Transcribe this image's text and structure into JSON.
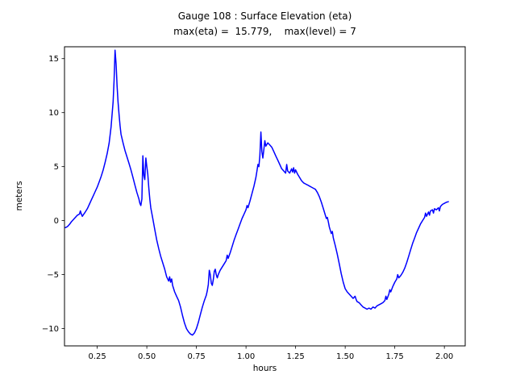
{
  "figure": {
    "title": "Gauge 108 : Surface Elevation (eta)",
    "subtitle": "max(eta) =  15.779,    max(level) = 7",
    "xlabel": "hours",
    "ylabel": "meters"
  },
  "chart_data": {
    "type": "line",
    "title": "Gauge 108 : Surface Elevation (eta)",
    "subtitle": "max(eta) =  15.779,    max(level) = 7",
    "xlabel": "hours",
    "ylabel": "meters",
    "max_eta": 15.779,
    "max_level": 7,
    "line_color": "#0000ff",
    "grid": false,
    "legend_position": "none",
    "xlim": [
      0.085,
      2.105
    ],
    "ylim": [
      -11.6,
      16.1
    ],
    "xticks": [
      0.25,
      0.5,
      0.75,
      1.0,
      1.25,
      1.5,
      1.75,
      2.0
    ],
    "xtick_labels": [
      "0.25",
      "0.50",
      "0.75",
      "1.00",
      "1.25",
      "1.50",
      "1.75",
      "2.00"
    ],
    "yticks": [
      -10,
      -5,
      0,
      5,
      10,
      15
    ],
    "ytick_labels": [
      "−10",
      "−5",
      "0",
      "5",
      "10",
      "15"
    ],
    "series": [
      {
        "name": "eta",
        "points": [
          [
            0.09,
            -0.65
          ],
          [
            0.1,
            -0.55
          ],
          [
            0.11,
            -0.35
          ],
          [
            0.12,
            -0.1
          ],
          [
            0.13,
            0.1
          ],
          [
            0.14,
            0.3
          ],
          [
            0.15,
            0.5
          ],
          [
            0.16,
            0.6
          ],
          [
            0.165,
            0.9
          ],
          [
            0.17,
            0.6
          ],
          [
            0.175,
            0.4
          ],
          [
            0.18,
            0.55
          ],
          [
            0.19,
            0.8
          ],
          [
            0.2,
            1.1
          ],
          [
            0.21,
            1.5
          ],
          [
            0.22,
            1.9
          ],
          [
            0.23,
            2.3
          ],
          [
            0.24,
            2.7
          ],
          [
            0.25,
            3.1
          ],
          [
            0.26,
            3.6
          ],
          [
            0.27,
            4.1
          ],
          [
            0.28,
            4.7
          ],
          [
            0.29,
            5.4
          ],
          [
            0.3,
            6.2
          ],
          [
            0.31,
            7.2
          ],
          [
            0.32,
            8.7
          ],
          [
            0.33,
            11.0
          ],
          [
            0.335,
            13.0
          ],
          [
            0.34,
            15.78
          ],
          [
            0.345,
            14.5
          ],
          [
            0.35,
            12.5
          ],
          [
            0.355,
            11.0
          ],
          [
            0.36,
            9.8
          ],
          [
            0.365,
            8.8
          ],
          [
            0.37,
            8.0
          ],
          [
            0.38,
            7.2
          ],
          [
            0.39,
            6.5
          ],
          [
            0.4,
            5.9
          ],
          [
            0.41,
            5.3
          ],
          [
            0.42,
            4.7
          ],
          [
            0.43,
            4.0
          ],
          [
            0.44,
            3.3
          ],
          [
            0.45,
            2.6
          ],
          [
            0.46,
            2.0
          ],
          [
            0.465,
            1.6
          ],
          [
            0.47,
            1.4
          ],
          [
            0.475,
            2.0
          ],
          [
            0.48,
            6.0
          ],
          [
            0.485,
            4.2
          ],
          [
            0.49,
            3.8
          ],
          [
            0.495,
            5.8
          ],
          [
            0.5,
            5.0
          ],
          [
            0.505,
            4.3
          ],
          [
            0.51,
            3.0
          ],
          [
            0.515,
            2.0
          ],
          [
            0.52,
            1.2
          ],
          [
            0.53,
            0.2
          ],
          [
            0.54,
            -0.8
          ],
          [
            0.55,
            -1.8
          ],
          [
            0.56,
            -2.6
          ],
          [
            0.57,
            -3.3
          ],
          [
            0.58,
            -3.9
          ],
          [
            0.59,
            -4.5
          ],
          [
            0.6,
            -5.2
          ],
          [
            0.61,
            -5.6
          ],
          [
            0.615,
            -5.2
          ],
          [
            0.62,
            -5.7
          ],
          [
            0.625,
            -5.4
          ],
          [
            0.63,
            -6.0
          ],
          [
            0.64,
            -6.6
          ],
          [
            0.65,
            -7.0
          ],
          [
            0.66,
            -7.4
          ],
          [
            0.67,
            -8.0
          ],
          [
            0.68,
            -8.8
          ],
          [
            0.69,
            -9.5
          ],
          [
            0.7,
            -10.0
          ],
          [
            0.71,
            -10.3
          ],
          [
            0.72,
            -10.5
          ],
          [
            0.73,
            -10.6
          ],
          [
            0.74,
            -10.4
          ],
          [
            0.75,
            -10.0
          ],
          [
            0.76,
            -9.4
          ],
          [
            0.77,
            -8.7
          ],
          [
            0.78,
            -8.0
          ],
          [
            0.79,
            -7.4
          ],
          [
            0.8,
            -6.9
          ],
          [
            0.805,
            -6.5
          ],
          [
            0.81,
            -5.9
          ],
          [
            0.815,
            -4.6
          ],
          [
            0.82,
            -5.0
          ],
          [
            0.825,
            -5.8
          ],
          [
            0.83,
            -6.0
          ],
          [
            0.835,
            -5.5
          ],
          [
            0.84,
            -4.7
          ],
          [
            0.845,
            -4.5
          ],
          [
            0.85,
            -5.0
          ],
          [
            0.855,
            -5.3
          ],
          [
            0.86,
            -5.0
          ],
          [
            0.87,
            -4.6
          ],
          [
            0.88,
            -4.3
          ],
          [
            0.89,
            -4.0
          ],
          [
            0.9,
            -3.7
          ],
          [
            0.905,
            -3.2
          ],
          [
            0.91,
            -3.5
          ],
          [
            0.92,
            -3.0
          ],
          [
            0.93,
            -2.4
          ],
          [
            0.94,
            -1.8
          ],
          [
            0.95,
            -1.3
          ],
          [
            0.96,
            -0.8
          ],
          [
            0.97,
            -0.3
          ],
          [
            0.98,
            0.2
          ],
          [
            0.99,
            0.6
          ],
          [
            1.0,
            1.0
          ],
          [
            1.005,
            1.4
          ],
          [
            1.01,
            1.2
          ],
          [
            1.02,
            1.8
          ],
          [
            1.03,
            2.5
          ],
          [
            1.04,
            3.2
          ],
          [
            1.05,
            4.0
          ],
          [
            1.055,
            4.6
          ],
          [
            1.06,
            5.2
          ],
          [
            1.065,
            5.0
          ],
          [
            1.07,
            6.0
          ],
          [
            1.075,
            8.2
          ],
          [
            1.08,
            6.4
          ],
          [
            1.085,
            5.8
          ],
          [
            1.09,
            6.6
          ],
          [
            1.095,
            7.4
          ],
          [
            1.1,
            6.9
          ],
          [
            1.11,
            7.2
          ],
          [
            1.12,
            7.0
          ],
          [
            1.13,
            6.8
          ],
          [
            1.14,
            6.4
          ],
          [
            1.15,
            6.0
          ],
          [
            1.16,
            5.6
          ],
          [
            1.17,
            5.2
          ],
          [
            1.18,
            4.8
          ],
          [
            1.19,
            4.6
          ],
          [
            1.2,
            4.4
          ],
          [
            1.205,
            5.2
          ],
          [
            1.21,
            4.6
          ],
          [
            1.22,
            4.4
          ],
          [
            1.23,
            4.8
          ],
          [
            1.235,
            4.5
          ],
          [
            1.24,
            4.9
          ],
          [
            1.245,
            4.4
          ],
          [
            1.25,
            4.7
          ],
          [
            1.26,
            4.3
          ],
          [
            1.27,
            4.0
          ],
          [
            1.28,
            3.7
          ],
          [
            1.29,
            3.5
          ],
          [
            1.3,
            3.4
          ],
          [
            1.31,
            3.3
          ],
          [
            1.32,
            3.2
          ],
          [
            1.33,
            3.1
          ],
          [
            1.34,
            3.0
          ],
          [
            1.35,
            2.9
          ],
          [
            1.36,
            2.6
          ],
          [
            1.37,
            2.2
          ],
          [
            1.38,
            1.7
          ],
          [
            1.39,
            1.1
          ],
          [
            1.4,
            0.5
          ],
          [
            1.405,
            0.2
          ],
          [
            1.41,
            0.3
          ],
          [
            1.415,
            -0.1
          ],
          [
            1.42,
            -0.6
          ],
          [
            1.43,
            -1.2
          ],
          [
            1.435,
            -1.0
          ],
          [
            1.44,
            -1.6
          ],
          [
            1.45,
            -2.3
          ],
          [
            1.46,
            -3.1
          ],
          [
            1.47,
            -4.0
          ],
          [
            1.48,
            -4.9
          ],
          [
            1.49,
            -5.7
          ],
          [
            1.5,
            -6.3
          ],
          [
            1.51,
            -6.6
          ],
          [
            1.52,
            -6.8
          ],
          [
            1.53,
            -7.0
          ],
          [
            1.54,
            -7.2
          ],
          [
            1.55,
            -7.0
          ],
          [
            1.555,
            -7.3
          ],
          [
            1.56,
            -7.5
          ],
          [
            1.57,
            -7.6
          ],
          [
            1.58,
            -7.8
          ],
          [
            1.59,
            -8.0
          ],
          [
            1.6,
            -8.1
          ],
          [
            1.61,
            -8.2
          ],
          [
            1.62,
            -8.1
          ],
          [
            1.63,
            -8.2
          ],
          [
            1.64,
            -8.0
          ],
          [
            1.65,
            -8.1
          ],
          [
            1.66,
            -7.9
          ],
          [
            1.67,
            -7.8
          ],
          [
            1.68,
            -7.7
          ],
          [
            1.69,
            -7.6
          ],
          [
            1.7,
            -7.4
          ],
          [
            1.705,
            -7.0
          ],
          [
            1.71,
            -7.3
          ],
          [
            1.72,
            -6.8
          ],
          [
            1.725,
            -6.4
          ],
          [
            1.73,
            -6.6
          ],
          [
            1.74,
            -6.1
          ],
          [
            1.75,
            -5.7
          ],
          [
            1.76,
            -5.4
          ],
          [
            1.765,
            -5.0
          ],
          [
            1.77,
            -5.3
          ],
          [
            1.78,
            -5.1
          ],
          [
            1.79,
            -4.8
          ],
          [
            1.8,
            -4.4
          ],
          [
            1.81,
            -3.9
          ],
          [
            1.82,
            -3.3
          ],
          [
            1.83,
            -2.7
          ],
          [
            1.84,
            -2.1
          ],
          [
            1.85,
            -1.6
          ],
          [
            1.86,
            -1.1
          ],
          [
            1.87,
            -0.7
          ],
          [
            1.88,
            -0.3
          ],
          [
            1.89,
            0.0
          ],
          [
            1.9,
            0.3
          ],
          [
            1.905,
            0.7
          ],
          [
            1.91,
            0.4
          ],
          [
            1.92,
            0.8
          ],
          [
            1.925,
            0.5
          ],
          [
            1.93,
            0.9
          ],
          [
            1.94,
            1.0
          ],
          [
            1.945,
            0.7
          ],
          [
            1.95,
            1.1
          ],
          [
            1.96,
            1.0
          ],
          [
            1.97,
            1.2
          ],
          [
            1.975,
            0.9
          ],
          [
            1.98,
            1.3
          ],
          [
            1.99,
            1.5
          ],
          [
            2.0,
            1.6
          ],
          [
            2.01,
            1.7
          ],
          [
            2.02,
            1.75
          ]
        ]
      }
    ]
  }
}
